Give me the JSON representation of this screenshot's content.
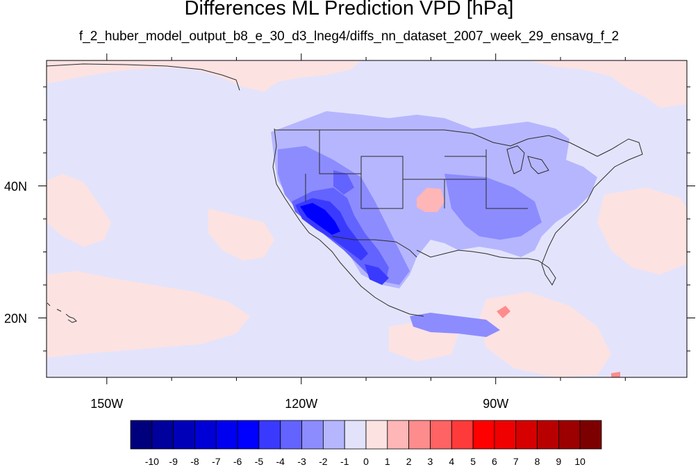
{
  "title": "Differences ML Prediction VPD [hPa]",
  "subtitle": "f_2_huber_model_output_b8_e_30_d3_lneg4/diffs_nn_dataset_2007_week_29_ensavg_f_2",
  "axes": {
    "lon_ticks": [
      {
        "lon": -150,
        "label": "150W"
      },
      {
        "lon": -120,
        "label": "120W"
      },
      {
        "lon": -90,
        "label": "90W"
      }
    ],
    "lat_ticks": [
      {
        "lat": 40,
        "label": "40N"
      },
      {
        "lat": 20,
        "label": "20N"
      }
    ],
    "lon_range": [
      -159.3,
      -60.5
    ],
    "lat_range": [
      11.0,
      59.0
    ]
  },
  "colorbar": {
    "levels": [
      "-10",
      "-9",
      "-8",
      "-7",
      "-6",
      "-5",
      "-4",
      "-3",
      "-2",
      "-1",
      "0",
      "1",
      "2",
      "3",
      "4",
      "5",
      "6",
      "7",
      "8",
      "9",
      "10"
    ],
    "colors": [
      "#00007d",
      "#00009c",
      "#0000b9",
      "#0000d6",
      "#0000f0",
      "#0000ff",
      "#3a3aff",
      "#6363ff",
      "#8c8cff",
      "#b6b6ff",
      "#e2e2fb",
      "#fde2e2",
      "#ffb6b6",
      "#ff8c8c",
      "#ff6363",
      "#ff3a3a",
      "#ff0000",
      "#f00000",
      "#d60000",
      "#b90000",
      "#9c0000",
      "#7d0000"
    ]
  },
  "background_color": "#e3e4fb",
  "land_outline_color": "#2a2a2a"
}
